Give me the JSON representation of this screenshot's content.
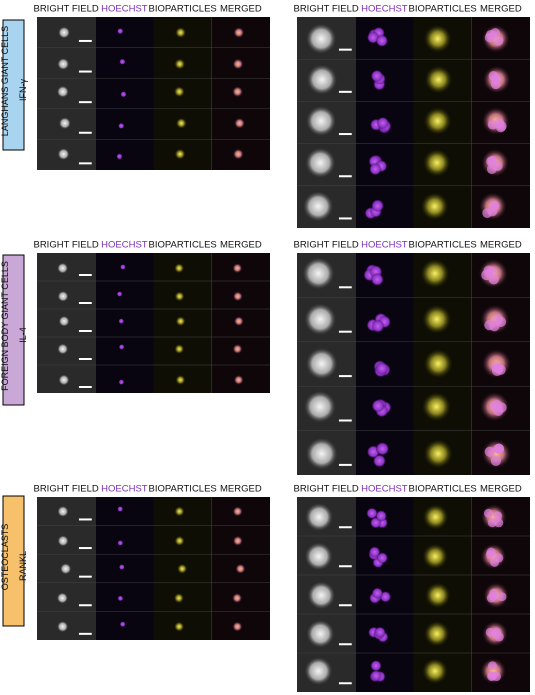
{
  "sections": [
    {
      "label": "LANGHANS GIANT CELLS",
      "treatment": "IFN-γ",
      "panels": [
        {
          "headers": [
            "BRIGHT FIELD",
            "HOECHST",
            "BIOPARTICLES",
            "MERGED"
          ]
        },
        {
          "headers": [
            "BRIGHT FIELD",
            "HOECHST",
            "BIOPARTICLES",
            "MERGED"
          ]
        }
      ]
    },
    {
      "label": "FOREIGN BODY GIANT CELLS",
      "treatment": "IL-4",
      "panels": [
        {
          "headers": [
            "BRIGHT FIELD",
            "HOECHST",
            "BIOPARTICLES",
            "MERGED"
          ]
        },
        {
          "headers": [
            "BRIGHT FIELD",
            "HOECHST",
            "BIOPARTICLES",
            "MERGED"
          ]
        }
      ]
    },
    {
      "label": "OSTEOCLASTS",
      "treatment": "RANKL",
      "panels": [
        {
          "headers": [
            "BRIGHT FIELD",
            "HOECHST",
            "BIOPARTICLES",
            "MERGED"
          ]
        },
        {
          "headers": [
            "BRIGHT FIELD",
            "HOECHST",
            "BIOPARTICLES",
            "MERGED"
          ]
        }
      ]
    }
  ]
}
